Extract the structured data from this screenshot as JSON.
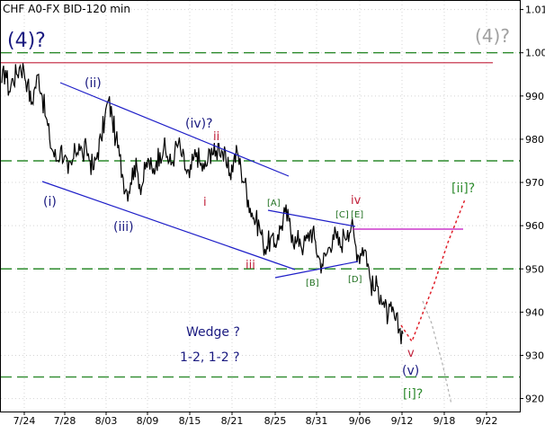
{
  "chart_data": {
    "type": "line",
    "title": "CHF A0-FX BID-120 min",
    "x_ticks": [
      "7/24",
      "7/28",
      "8/03",
      "8/09",
      "8/15",
      "8/21",
      "8/25",
      "8/31",
      "9/06",
      "9/12",
      "9/18",
      "9/22"
    ],
    "y_ticks": [
      "1.01",
      "1.00",
      "990",
      "980",
      "970",
      "960",
      "950",
      "940",
      "930",
      "920"
    ],
    "ylim": [
      0.917,
      1.012
    ],
    "series": [
      {
        "values": [
          0.993,
          0.996,
          0.991,
          0.994,
          0.995,
          0.997,
          0.996,
          0.993,
          0.988,
          0.992,
          0.995,
          0.99,
          0.985,
          0.98,
          0.977,
          0.975,
          0.978,
          0.976,
          0.972,
          0.974,
          0.977,
          0.979,
          0.976,
          0.978,
          0.975,
          0.973,
          0.977,
          0.98,
          0.985,
          0.989,
          0.985,
          0.98,
          0.976,
          0.971,
          0.968,
          0.97,
          0.974,
          0.972,
          0.969,
          0.973,
          0.975,
          0.972,
          0.975,
          0.977,
          0.978,
          0.976,
          0.974,
          0.977,
          0.979,
          0.976,
          0.973,
          0.971,
          0.975,
          0.977,
          0.974,
          0.973,
          0.975,
          0.978,
          0.976,
          0.979,
          0.977,
          0.974,
          0.972,
          0.975,
          0.977,
          0.973,
          0.97,
          0.966,
          0.963,
          0.961,
          0.96,
          0.956,
          0.955,
          0.957,
          0.955,
          0.958,
          0.96,
          0.963,
          0.961,
          0.958,
          0.956,
          0.957,
          0.955,
          0.957,
          0.959,
          0.957,
          0.953,
          0.951,
          0.953,
          0.955,
          0.958,
          0.957,
          0.955,
          0.958,
          0.959,
          0.96,
          0.956,
          0.953,
          0.955,
          0.954,
          0.948,
          0.945,
          0.946,
          0.944,
          0.941,
          0.939,
          0.94,
          0.938,
          0.936,
          0.935
        ]
      }
    ],
    "levels": {
      "red_line": 0.9977,
      "green_dashed": [
        1.0,
        0.975,
        0.95,
        0.925
      ]
    },
    "annotations": {
      "wave4": "(4)?",
      "wave4_gray": "(4)?",
      "i_paren": "(i)",
      "ii_paren": "(ii)",
      "iii_paren": "(iii)",
      "iv_paren": "(iv)?",
      "ii_red": "ii",
      "i_red": "i",
      "iii_red": "iii",
      "iv_red": "iv",
      "A": "[A]",
      "B": "[B]",
      "C": "[C]",
      "D": "[D]",
      "E": "[E]",
      "v_red": "v",
      "v_paren": "(v)",
      "i_green": "[i]?",
      "ii_green": "[ii]?",
      "wedge": "Wedge ?",
      "twelve": "1-2, 1-2 ?"
    },
    "colors": {
      "price": "#000000",
      "channel": "#1f1fc8",
      "resistance": "#c0203a",
      "magenta": "#c010c0",
      "support": "#2e8b2e",
      "projection": "#e0202a",
      "alt_projection": "#b0b0b0"
    }
  }
}
